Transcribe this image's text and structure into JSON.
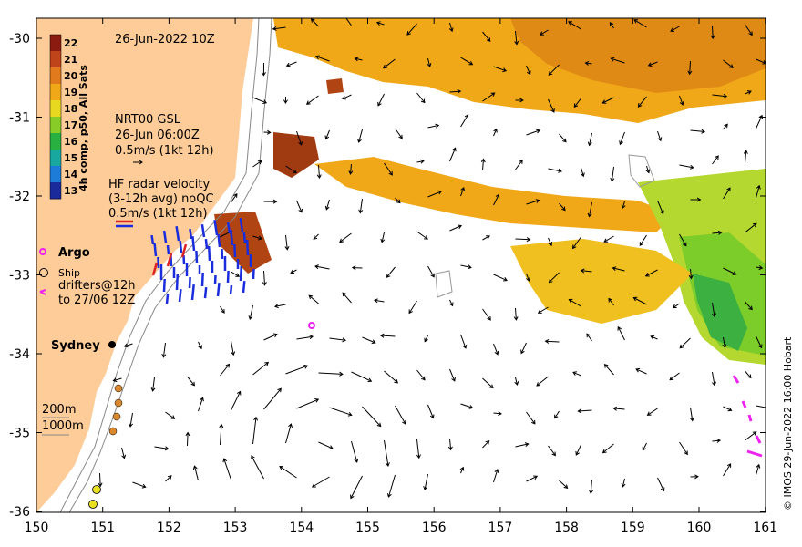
{
  "map": {
    "date_label": "26-Jun-2022 10Z",
    "x_ticks": [
      "150",
      "151",
      "152",
      "153",
      "154",
      "155",
      "156",
      "157",
      "158",
      "159",
      "160",
      "161"
    ],
    "y_ticks": [
      "-30",
      "-31",
      "-32",
      "-33",
      "-34",
      "-35",
      "-36"
    ],
    "credit": "© IMOS 29-Jun-2022 16:00 Hobart",
    "colors": {
      "land": "#fdcc99",
      "warm": "#f0a010",
      "hot": "#a03a10",
      "cool": "#7ccc2a",
      "radar_arrow": "#1a2ddd",
      "drifter": "#ee22ee",
      "ship_marker": "#d98830"
    }
  },
  "colorbar": {
    "title": "4h comp, p50, All Sats",
    "labels": [
      "22",
      "21",
      "20",
      "19",
      "18",
      "17",
      "16",
      "15",
      "14",
      "13"
    ],
    "colors": [
      "#8b1a10",
      "#c0441a",
      "#e07a1c",
      "#f0a818",
      "#e8d820",
      "#88cc28",
      "#28b040",
      "#18a8a0",
      "#1c7cd8",
      "#1a2a9a"
    ]
  },
  "legend": {
    "gsl_title": "NRT00 GSL",
    "gsl_time": "26-Jun 06:00Z",
    "gsl_scale": "0.5m/s (1kt 12h)",
    "hf_title": "HF radar velocity",
    "hf_avg": "(3-12h avg) noQC",
    "hf_scale": "0.5m/s (1kt 12h)",
    "argo_label": "Argo",
    "ship_label": "Ship",
    "drifters_line1": "drifters@12h",
    "drifters_line2": "to 27/06 12Z",
    "city": "Sydney",
    "contour_200": "200m",
    "contour_1000": "1000m"
  }
}
